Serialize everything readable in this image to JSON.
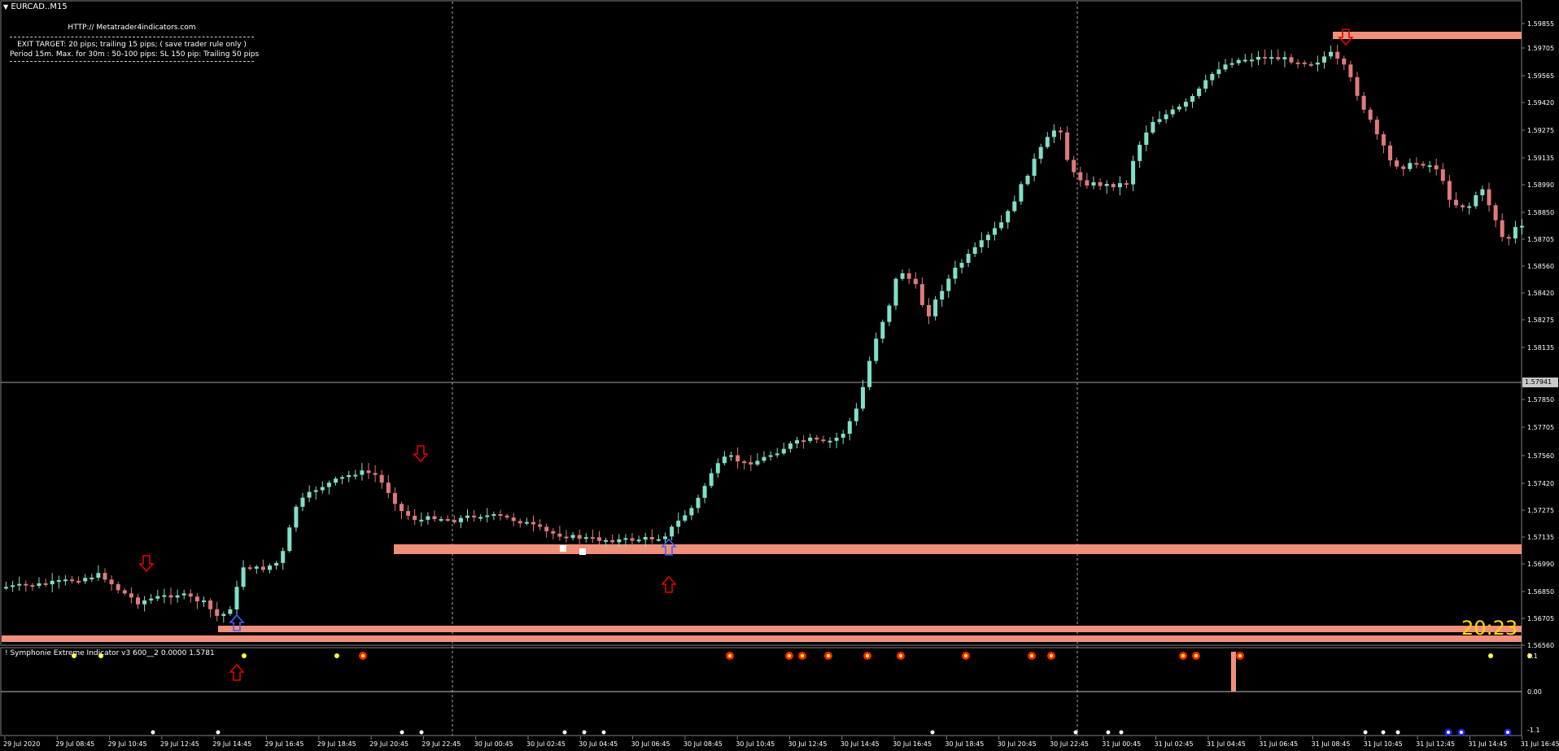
{
  "symbol_title": "EURCAD..M15",
  "info": {
    "url": "HTTP:// Metatrader4indicators.com",
    "line1": "EXIT TARGET: 20 pips; trailing 15 pips; ( save trader rule only )",
    "line2": "Period 15m. Max. for 30m  : 50-100 pips: SL 150 pip: Trailing 50 pips"
  },
  "timer": "20:23",
  "indicator_title": "! Symphonie Extreme Indicator v3 600__2 0.0000 1.5781",
  "current_price": "1.57941",
  "price_ticks": [
    "1.59855",
    "1.59705",
    "1.59565",
    "1.59420",
    "1.59275",
    "1.59135",
    "1.58990",
    "1.58850",
    "1.58705",
    "1.58560",
    "1.58420",
    "1.58275",
    "1.58135",
    "1.57850",
    "1.57705",
    "1.57560",
    "1.57420",
    "1.57275",
    "1.57135",
    "1.56990",
    "1.56850",
    "1.56705",
    "1.56560"
  ],
  "indicator_ticks": [
    "1.1",
    "0.00",
    "-1.1"
  ],
  "time_ticks": [
    "29 Jul 2020",
    "29 Jul 08:45",
    "29 Jul 10:45",
    "29 Jul 12:45",
    "29 Jul 14:45",
    "29 Jul 16:45",
    "29 Jul 18:45",
    "29 Jul 20:45",
    "29 Jul 22:45",
    "30 Jul 00:45",
    "30 Jul 02:45",
    "30 Jul 04:45",
    "30 Jul 06:45",
    "30 Jul 08:45",
    "30 Jul 10:45",
    "30 Jul 12:45",
    "30 Jul 14:45",
    "30 Jul 16:45",
    "30 Jul 18:45",
    "30 Jul 20:45",
    "30 Jul 22:45",
    "31 Jul 00:45",
    "31 Jul 02:45",
    "31 Jul 04:45",
    "31 Jul 06:45",
    "31 Jul 08:45",
    "31 Jul 10:45",
    "31 Jul 12:45",
    "31 Jul 14:45",
    "31 Jul 16:45"
  ],
  "colors": {
    "bull": "#7fe0c8",
    "bear": "#e07a7a",
    "zone": "#f0907a",
    "arrow_down": "#e00000",
    "arrow_up_red": "#e00000",
    "arrow_up_blue": "#4060ff",
    "timer": "#ffd800",
    "dot_yellow": "#ffff40",
    "dot_red": "#ff2000",
    "dot_white": "#ffffff",
    "dot_blue": "#2020ff"
  }
}
